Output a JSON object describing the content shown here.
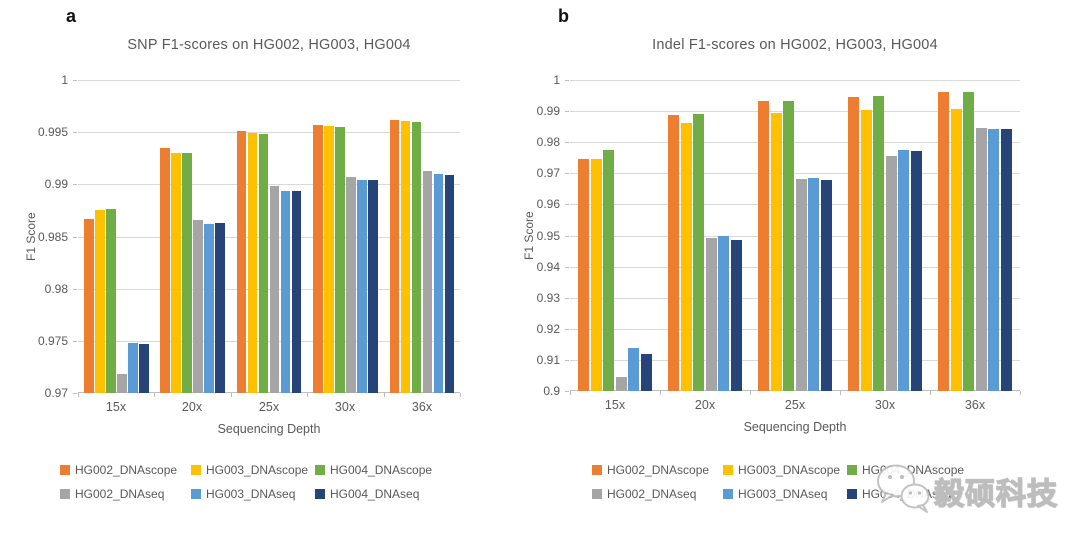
{
  "figure": {
    "background": "#ffffff",
    "panel_labels": [
      "a",
      "b"
    ]
  },
  "colors": {
    "gridline": "#d9d9d9",
    "axis": "#bfbfbf",
    "muted_text": "#595959",
    "orange": "#ED7D31",
    "gold": "#FFC000",
    "green": "#70AD47",
    "gray": "#A5A5A5",
    "light_blue": "#5B9BD5",
    "navy": "#264478",
    "watermark_gray": "#bdbdbd"
  },
  "legend": {
    "items": [
      {
        "label": "HG002_DNAscope",
        "color": "#ED7D31"
      },
      {
        "label": "HG003_DNAscope",
        "color": "#FFC000"
      },
      {
        "label": "HG004_DNAscope",
        "color": "#70AD47"
      },
      {
        "label": "HG002_DNAseq",
        "color": "#A5A5A5"
      },
      {
        "label": "HG003_DNAseq",
        "color": "#5B9BD5"
      },
      {
        "label": "HG004_DNAseq",
        "color": "#264478"
      }
    ]
  },
  "watermark": {
    "text": "毅硕科技",
    "logo": "wechat-icon"
  },
  "chart_data": [
    {
      "type": "bar",
      "panel_label": "a",
      "title": "SNP F1-scores on HG002, HG003, HG004",
      "xlabel": "Sequencing Depth",
      "ylabel": "F1 Score",
      "ylim": [
        0.97,
        1.0
      ],
      "yticks": [
        "1",
        "0.995",
        "0.99",
        "0.985",
        "0.98",
        "0.975",
        "0.97"
      ],
      "grid": true,
      "legend_position": "bottom",
      "categories": [
        "15x",
        "20x",
        "25x",
        "30x",
        "36x"
      ],
      "series": [
        {
          "name": "HG002_DNAscope",
          "color": "#ED7D31",
          "values": [
            0.9867,
            0.9935,
            0.9951,
            0.9957,
            0.9962
          ]
        },
        {
          "name": "HG003_DNAscope",
          "color": "#FFC000",
          "values": [
            0.9875,
            0.993,
            0.9949,
            0.9956,
            0.9961
          ]
        },
        {
          "name": "HG004_DNAscope",
          "color": "#70AD47",
          "values": [
            0.9876,
            0.993,
            0.9948,
            0.9955,
            0.996
          ]
        },
        {
          "name": "HG002_DNAseq",
          "color": "#A5A5A5",
          "values": [
            0.9718,
            0.9866,
            0.9898,
            0.9907,
            0.9913
          ]
        },
        {
          "name": "HG003_DNAseq",
          "color": "#5B9BD5",
          "values": [
            0.9748,
            0.9862,
            0.9894,
            0.9904,
            0.991
          ]
        },
        {
          "name": "HG004_DNAseq",
          "color": "#264478",
          "values": [
            0.9747,
            0.9863,
            0.9894,
            0.9904,
            0.9909
          ]
        }
      ]
    },
    {
      "type": "bar",
      "panel_label": "b",
      "title": "Indel F1-scores on HG002, HG003, HG004",
      "xlabel": "Sequencing Depth",
      "ylabel": "F1 Score",
      "ylim": [
        0.9,
        1.0
      ],
      "yticks": [
        "1",
        "0.99",
        "0.98",
        "0.97",
        "0.96",
        "0.95",
        "0.94",
        "0.93",
        "0.92",
        "0.91",
        "0.9"
      ],
      "grid": true,
      "legend_position": "bottom",
      "categories": [
        "15x",
        "20x",
        "25x",
        "30x",
        "36x"
      ],
      "series": [
        {
          "name": "HG002_DNAscope",
          "color": "#ED7D31",
          "values": [
            0.9745,
            0.9888,
            0.9932,
            0.9945,
            0.996
          ]
        },
        {
          "name": "HG003_DNAscope",
          "color": "#FFC000",
          "values": [
            0.9745,
            0.9863,
            0.9893,
            0.9905,
            0.9908
          ]
        },
        {
          "name": "HG004_DNAscope",
          "color": "#70AD47",
          "values": [
            0.9776,
            0.989,
            0.9932,
            0.9948,
            0.996
          ]
        },
        {
          "name": "HG002_DNAseq",
          "color": "#A5A5A5",
          "values": [
            0.9045,
            0.9493,
            0.9682,
            0.9757,
            0.9845
          ]
        },
        {
          "name": "HG003_DNAseq",
          "color": "#5B9BD5",
          "values": [
            0.914,
            0.9498,
            0.9686,
            0.9776,
            0.9843
          ]
        },
        {
          "name": "HG004_DNAseq",
          "color": "#264478",
          "values": [
            0.912,
            0.9487,
            0.9678,
            0.9773,
            0.9841
          ]
        }
      ]
    }
  ]
}
